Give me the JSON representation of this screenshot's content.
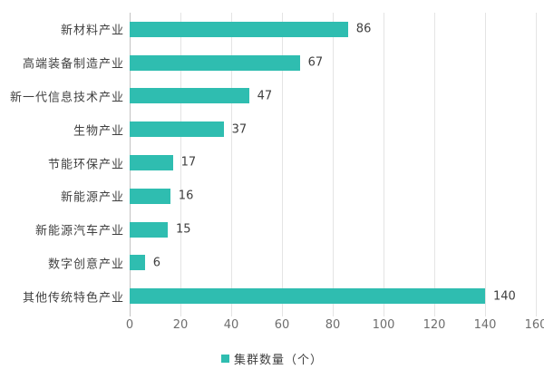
{
  "chart_data": {
    "type": "bar",
    "orientation": "horizontal",
    "categories": [
      "新材料产业",
      "高端装备制造产业",
      "新一代信息技术产业",
      "生物产业",
      "节能环保产业",
      "新能源产业",
      "新能源汽车产业",
      "数字创意产业",
      "其他传统特色产业"
    ],
    "values": [
      86,
      67,
      47,
      37,
      17,
      16,
      15,
      6,
      140
    ],
    "data_labels_shown": true,
    "title": "",
    "xlabel": "",
    "ylabel": "",
    "xlim": [
      0,
      160
    ],
    "xticks": [
      0,
      20,
      40,
      60,
      80,
      100,
      120,
      140,
      160
    ],
    "grid": "vertical",
    "legend": {
      "label": "集群数量（个）",
      "position": "bottom-center"
    },
    "colors": {
      "bar": "#2fbdb0",
      "gridline": "#e4e4e4",
      "axis_line": "#c3c3c3",
      "category_text": "#3f3f3f",
      "value_text": "#3f3f3f",
      "tick_text": "#6e6e6e",
      "background": "#ffffff"
    }
  }
}
